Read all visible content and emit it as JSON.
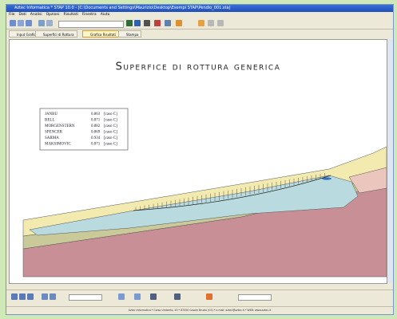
{
  "window": {
    "title": "Aztec Informatica * STAP 10.0 - [C:\\Documents and Settings\\Maurizio\\Desktop\\Esempi STAP\\Pendio_001.sta]",
    "menu": [
      "File",
      "Dati",
      "Analisi",
      "Opzioni",
      "Risultati",
      "Finestra",
      "Aiuto"
    ],
    "tabs": [
      "Input Grafico",
      "Superfici di Rottura",
      "Grafica Risultati",
      "Stampa"
    ],
    "active_tab": 2
  },
  "drawing": {
    "title": "Superfice di rottura generica",
    "legend": [
      {
        "method": "JANBU",
        "fs": "0.863",
        "case": "[caso C]"
      },
      {
        "method": "BELL",
        "fs": "0.871",
        "case": "[caso C]"
      },
      {
        "method": "MORGENSTERN",
        "fs": "0.882",
        "case": "[caso C]"
      },
      {
        "method": "SPENCER",
        "fs": "0.869",
        "case": "[caso C]"
      },
      {
        "method": "SARMA",
        "fs": "0.934",
        "case": "[caso C]"
      },
      {
        "method": "MAKSIMOVIC",
        "fs": "0.871",
        "case": "[caso C]"
      }
    ]
  },
  "status": "Aztec Informatica * Corso Umberto, 43 * 87050 Casole Bruzio (CS) * e-mail: aztec@aztec.it * WEB: www.aztec.it"
}
